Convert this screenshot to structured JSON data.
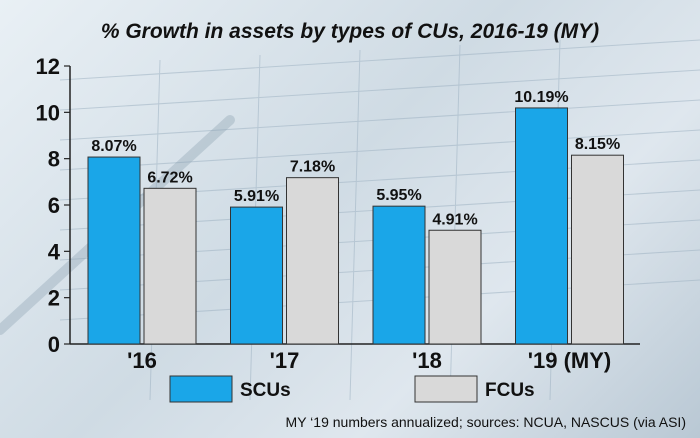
{
  "chart_data": {
    "type": "bar",
    "title": "% Growth in assets by types of CUs, 2016-19 (MY)",
    "categories": [
      "'16",
      "'17",
      "'18",
      "'19 (MY)"
    ],
    "series": [
      {
        "name": "SCUs",
        "color": "#1aa6e8",
        "values": [
          8.07,
          5.91,
          5.95,
          10.19
        ],
        "labels": [
          "8.07%",
          "5.91%",
          "5.95%",
          "10.19%"
        ]
      },
      {
        "name": "FCUs",
        "color": "#d9d9d9",
        "values": [
          6.72,
          7.18,
          4.91,
          8.15
        ],
        "labels": [
          "6.72%",
          "7.18%",
          "4.91%",
          "8.15%"
        ]
      }
    ],
    "ylim": [
      0,
      12
    ],
    "yticks": [
      "0",
      "2",
      "4",
      "6",
      "8",
      "10",
      "12"
    ],
    "grid": false,
    "legend": "bottom",
    "footnote": "MY ‘19 numbers annualized; sources: NCUA, NASCUS (via ASI)"
  }
}
